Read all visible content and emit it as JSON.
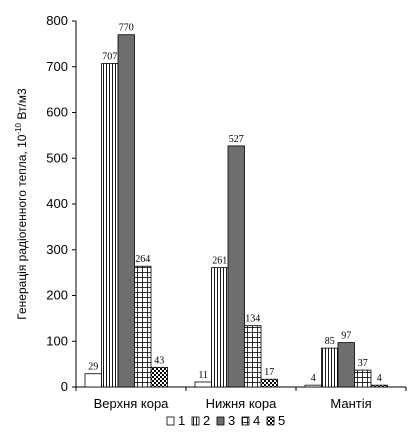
{
  "chart_data": {
    "type": "bar",
    "categories": [
      "Верхня кора",
      "Нижня кора",
      "Мантія"
    ],
    "series": [
      {
        "name": "1",
        "values": [
          29,
          11,
          4
        ],
        "pattern": "white"
      },
      {
        "name": "2",
        "values": [
          707,
          261,
          85
        ],
        "pattern": "vertical-lines"
      },
      {
        "name": "3",
        "values": [
          770,
          527,
          97
        ],
        "pattern": "solid-gray"
      },
      {
        "name": "4",
        "values": [
          264,
          134,
          37
        ],
        "pattern": "grid"
      },
      {
        "name": "5",
        "values": [
          43,
          17,
          4
        ],
        "pattern": "checker"
      }
    ],
    "ylabel_main": "Генерація радіогенного тепла, 10",
    "ylabel_sup": "-10",
    "ylabel_unit": " Вт/м3",
    "ylim": [
      0,
      800
    ],
    "yticks": [
      "0",
      "100",
      "200",
      "300",
      "400",
      "500",
      "600",
      "700",
      "800"
    ],
    "grid": false,
    "legend_position": "bottom",
    "colors": {
      "solid": "#6e6e6e",
      "stroke": "#000000",
      "background": "#ffffff"
    }
  }
}
